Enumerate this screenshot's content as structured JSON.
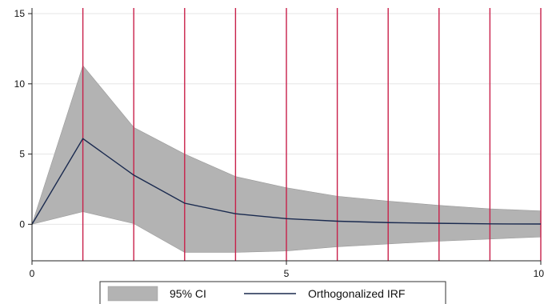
{
  "chart_data": {
    "type": "area",
    "x": [
      0,
      1,
      2,
      3,
      4,
      5,
      6,
      7,
      8,
      9,
      10
    ],
    "series": [
      {
        "name": "95% CI",
        "kind": "band",
        "lower": [
          0.0,
          0.9,
          0.05,
          -2.0,
          -2.0,
          -1.9,
          -1.6,
          -1.4,
          -1.2,
          -1.05,
          -0.9
        ],
        "upper": [
          0.0,
          11.3,
          6.9,
          5.0,
          3.4,
          2.6,
          2.0,
          1.65,
          1.35,
          1.1,
          0.95
        ],
        "color": "#b3b3b3"
      },
      {
        "name": "Orthogonalized IRF",
        "kind": "line",
        "values": [
          0.0,
          6.1,
          3.5,
          1.5,
          0.75,
          0.4,
          0.22,
          0.12,
          0.07,
          0.03,
          0.02
        ],
        "color": "#1a2a4f"
      }
    ],
    "xlim": [
      0,
      10
    ],
    "ylim": [
      -2.6,
      15.4
    ],
    "xticks": [
      0,
      5,
      10
    ],
    "yticks": [
      0,
      5,
      10,
      15
    ],
    "xtick_labels": [
      "0",
      "5",
      "10"
    ],
    "ytick_labels": [
      "0",
      "5",
      "10",
      "15"
    ],
    "vlines": [
      1,
      2,
      3,
      4,
      5,
      6,
      7,
      8,
      9,
      10
    ],
    "vline_color": "#c8204a",
    "grid": true,
    "legend_position": "bottom",
    "title": "",
    "xlabel": "",
    "ylabel": ""
  },
  "legend": {
    "ci_label": "95% CI",
    "irf_label": "Orthogonalized IRF"
  }
}
